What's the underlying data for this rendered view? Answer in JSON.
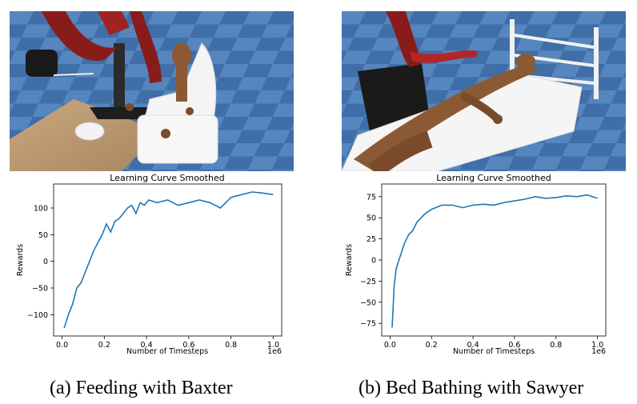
{
  "panels": [
    {
      "caption": "(a) Feeding with Baxter",
      "scene_icon": "robot-feeding-scene",
      "chart_data": {
        "type": "line",
        "title": "Learning Curve Smoothed",
        "xlabel": "Number of Timesteps",
        "ylabel": "Rewards",
        "x_offset_label": "1e6",
        "xlim": [
          -0.04,
          1.04
        ],
        "ylim": [
          -140,
          145
        ],
        "xticks": [
          0.0,
          0.2,
          0.4,
          0.6,
          0.8,
          1.0
        ],
        "xtick_labels": [
          "0.0",
          "0.2",
          "0.4",
          "0.6",
          "0.8",
          "1.0"
        ],
        "yticks": [
          -100,
          -50,
          0,
          50,
          100
        ],
        "ytick_labels": [
          "−100",
          "−50",
          "0",
          "50",
          "100"
        ],
        "line_color": "#1f77b4",
        "series": [
          {
            "x": [
              0.01,
              0.03,
              0.05,
              0.07,
              0.09,
              0.11,
              0.13,
              0.15,
              0.17,
              0.19,
              0.21,
              0.23,
              0.25,
              0.27,
              0.29,
              0.31,
              0.33,
              0.35,
              0.37,
              0.39,
              0.41,
              0.45,
              0.5,
              0.55,
              0.6,
              0.65,
              0.7,
              0.75,
              0.8,
              0.85,
              0.9,
              0.95,
              1.0
            ],
            "y": [
              -125,
              -100,
              -80,
              -50,
              -40,
              -20,
              0,
              20,
              35,
              50,
              70,
              55,
              75,
              80,
              90,
              100,
              105,
              90,
              110,
              105,
              115,
              110,
              115,
              105,
              110,
              115,
              110,
              100,
              120,
              125,
              130,
              128,
              125
            ]
          }
        ]
      }
    },
    {
      "caption": "(b) Bed Bathing with Sawyer",
      "scene_icon": "robot-bed-bathing-scene",
      "chart_data": {
        "type": "line",
        "title": "Learning Curve Smoothed",
        "xlabel": "Number of Timesteps",
        "ylabel": "Rewards",
        "x_offset_label": "1e6",
        "xlim": [
          -0.04,
          1.04
        ],
        "ylim": [
          -90,
          90
        ],
        "xticks": [
          0.0,
          0.2,
          0.4,
          0.6,
          0.8,
          1.0
        ],
        "xtick_labels": [
          "0.0",
          "0.2",
          "0.4",
          "0.6",
          "0.8",
          "1.0"
        ],
        "yticks": [
          -75,
          -50,
          -25,
          0,
          25,
          50,
          75
        ],
        "ytick_labels": [
          "−75",
          "−50",
          "−25",
          "0",
          "25",
          "50",
          "75"
        ],
        "line_color": "#1f77b4",
        "series": [
          {
            "x": [
              0.01,
              0.02,
              0.03,
              0.05,
              0.07,
              0.09,
              0.11,
              0.13,
              0.15,
              0.17,
              0.2,
              0.25,
              0.3,
              0.35,
              0.4,
              0.45,
              0.5,
              0.55,
              0.6,
              0.65,
              0.7,
              0.75,
              0.8,
              0.85,
              0.9,
              0.95,
              1.0
            ],
            "y": [
              -80,
              -30,
              -10,
              5,
              20,
              30,
              35,
              45,
              50,
              55,
              60,
              65,
              65,
              62,
              65,
              66,
              65,
              68,
              70,
              72,
              75,
              73,
              74,
              76,
              75,
              77,
              73
            ]
          }
        ]
      }
    }
  ]
}
